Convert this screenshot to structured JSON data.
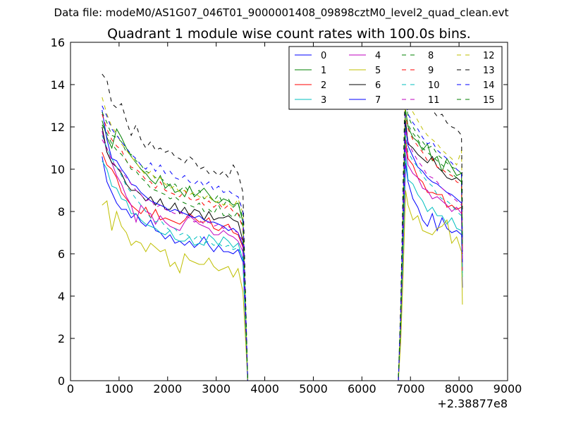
{
  "chart_data": {
    "type": "line",
    "suptitle": "Data file: modeM0/AS1G07_046T01_9000001408_09898cztM0_level2_quad_clean.evt",
    "title": "Quadrant 1 module wise count rates with 100.0s bins.",
    "xlabel": "",
    "ylabel": "",
    "x_offset_label": "+2.38877e8",
    "xlim": [
      0,
      9000
    ],
    "ylim": [
      0,
      16
    ],
    "x_ticks": [
      "0",
      "1000",
      "2000",
      "3000",
      "4000",
      "5000",
      "6000",
      "7000",
      "8000",
      "9000"
    ],
    "y_ticks": [
      "0",
      "2",
      "4",
      "6",
      "8",
      "10",
      "12",
      "14",
      "16"
    ],
    "grid": false,
    "legend_position": "top-right",
    "x": [
      650,
      750,
      850,
      950,
      1050,
      1150,
      1250,
      1350,
      1450,
      1550,
      1650,
      1750,
      1850,
      1950,
      2050,
      2150,
      2250,
      2350,
      2450,
      2550,
      2650,
      2750,
      2850,
      2950,
      3050,
      3150,
      3250,
      3350,
      3450,
      3550,
      3650,
      3700,
      4000,
      5000,
      6000,
      6750,
      6800,
      6850,
      6900,
      6950,
      7050,
      7150,
      7250,
      7350,
      7450,
      7550,
      7650,
      7750,
      7850,
      7950,
      8050,
      8070
    ],
    "series": [
      {
        "name": "0",
        "color": "#0000ff",
        "dash": false,
        "values": [
          10.6,
          9.4,
          8.9,
          8.4,
          8.1,
          8.1,
          7.7,
          7.9,
          7.5,
          7.3,
          7.6,
          7.1,
          7.0,
          6.7,
          6.9,
          6.5,
          6.6,
          6.4,
          6.6,
          6.3,
          6.5,
          6.8,
          6.4,
          6.1,
          6.4,
          6.1,
          6.1,
          6.0,
          6.2,
          5.6,
          0,
          0,
          0,
          0,
          0,
          0,
          2.2,
          6.0,
          10.3,
          9.4,
          8.6,
          8.2,
          7.6,
          7.3,
          7.9,
          7.1,
          7.7,
          7.2,
          7.0,
          7.1,
          6.9,
          4.4
        ]
      },
      {
        "name": "1",
        "color": "#008000",
        "dash": false,
        "values": [
          12.3,
          11.5,
          11.0,
          11.9,
          11.5,
          11.0,
          10.6,
          10.3,
          10.0,
          9.8,
          9.5,
          9.3,
          9.7,
          9.1,
          9.3,
          8.9,
          9.0,
          8.7,
          9.2,
          8.7,
          8.9,
          9.1,
          8.8,
          8.5,
          8.4,
          8.6,
          8.5,
          8.3,
          8.4,
          7.5,
          0,
          0,
          0,
          0,
          0,
          0,
          3.0,
          8.0,
          12.8,
          12.0,
          11.5,
          11.3,
          10.9,
          11.2,
          10.4,
          10.6,
          9.9,
          10.5,
          10.1,
          9.7,
          9.8,
          6.7
        ]
      },
      {
        "name": "2",
        "color": "#ff0000",
        "dash": false,
        "values": [
          10.8,
          10.2,
          10.0,
          9.6,
          8.9,
          8.6,
          8.3,
          8.1,
          7.9,
          8.2,
          7.7,
          8.1,
          7.6,
          7.7,
          7.6,
          7.5,
          7.4,
          7.6,
          7.9,
          7.7,
          7.5,
          7.5,
          7.7,
          7.2,
          7.1,
          7.3,
          7.4,
          7.0,
          6.9,
          6.3,
          0,
          0,
          0,
          0,
          0,
          0,
          2.5,
          7.2,
          11.4,
          10.5,
          10.2,
          9.6,
          9.4,
          8.9,
          8.9,
          8.8,
          8.8,
          8.2,
          8.3,
          8.1,
          8.2,
          5.2
        ]
      },
      {
        "name": "3",
        "color": "#00bfbf",
        "dash": false,
        "values": [
          10.4,
          10.0,
          9.2,
          9.1,
          8.6,
          8.5,
          7.9,
          7.9,
          7.6,
          7.4,
          7.3,
          7.2,
          7.0,
          6.9,
          7.1,
          6.7,
          6.6,
          6.6,
          6.8,
          6.4,
          6.5,
          6.4,
          6.9,
          6.7,
          6.4,
          6.8,
          6.6,
          6.3,
          6.5,
          5.7,
          0,
          0,
          0,
          0,
          0,
          0,
          2.4,
          6.2,
          10.7,
          9.5,
          9.3,
          8.8,
          8.5,
          8.0,
          8.2,
          7.8,
          7.8,
          7.4,
          7.7,
          7.2,
          7.1,
          4.9
        ]
      },
      {
        "name": "4",
        "color": "#bf00bf",
        "dash": false,
        "values": [
          11.8,
          10.8,
          10.3,
          9.7,
          9.3,
          8.7,
          8.3,
          7.5,
          8.3,
          8.0,
          7.9,
          7.4,
          7.8,
          7.5,
          7.3,
          7.2,
          7.1,
          7.5,
          7.8,
          7.6,
          7.4,
          7.3,
          7.2,
          6.9,
          6.9,
          7.1,
          6.9,
          6.8,
          6.6,
          6.1,
          0,
          0,
          0,
          0,
          0,
          0,
          2.6,
          6.8,
          11.1,
          10.2,
          9.8,
          9.6,
          9.1,
          9.0,
          8.6,
          8.7,
          8.5,
          8.3,
          8.0,
          8.2,
          7.9,
          5.2
        ]
      },
      {
        "name": "5",
        "color": "#bfbf00",
        "dash": false,
        "values": [
          8.3,
          8.5,
          7.1,
          8.0,
          7.3,
          7.0,
          6.4,
          6.6,
          6.5,
          6.1,
          6.5,
          6.3,
          6.1,
          6.2,
          5.4,
          5.6,
          5.1,
          6.0,
          5.7,
          5.6,
          5.5,
          5.5,
          5.8,
          5.4,
          5.2,
          5.3,
          5.4,
          4.9,
          5.3,
          4.2,
          0,
          0,
          0,
          0,
          0,
          0,
          1.8,
          5.1,
          9.0,
          8.3,
          7.6,
          7.8,
          7.1,
          7.0,
          6.9,
          7.2,
          7.3,
          7.6,
          6.5,
          6.8,
          6.1,
          3.6
        ]
      },
      {
        "name": "6",
        "color": "#000000",
        "dash": false,
        "values": [
          12.0,
          10.8,
          10.3,
          10.1,
          9.8,
          9.3,
          9.0,
          9.0,
          8.8,
          8.5,
          8.7,
          8.3,
          8.6,
          8.1,
          8.1,
          8.4,
          7.9,
          8.2,
          7.8,
          8.1,
          8.0,
          7.6,
          8.0,
          7.6,
          7.7,
          7.7,
          7.8,
          7.6,
          7.5,
          6.6,
          0,
          0,
          0,
          0,
          0,
          0,
          2.9,
          7.5,
          12.3,
          11.2,
          11.0,
          10.7,
          10.5,
          10.3,
          10.6,
          10.1,
          9.9,
          9.6,
          9.5,
          9.6,
          9.4,
          6.1
        ]
      },
      {
        "name": "7",
        "color": "#0000ff",
        "dash": false,
        "values": [
          12.8,
          11.4,
          10.5,
          10.4,
          10.0,
          9.7,
          9.3,
          9.2,
          8.9,
          8.7,
          8.5,
          8.4,
          8.3,
          8.2,
          8.0,
          8.1,
          8.0,
          7.9,
          7.8,
          7.7,
          7.8,
          7.6,
          7.5,
          7.5,
          7.4,
          7.3,
          7.1,
          7.2,
          7.0,
          6.4,
          0,
          0,
          0,
          0,
          0,
          0,
          2.8,
          7.3,
          12.0,
          11.1,
          10.6,
          10.1,
          9.9,
          9.6,
          9.4,
          9.3,
          9.1,
          8.9,
          8.8,
          8.6,
          8.4,
          5.6
        ]
      },
      {
        "name": "8",
        "color": "#008000",
        "dash": true,
        "values": [
          12.7,
          12.2,
          11.6,
          11.5,
          11.3,
          10.8,
          10.7,
          10.4,
          10.2,
          9.9,
          9.8,
          9.6,
          9.6,
          9.4,
          9.2,
          9.3,
          9.0,
          9.2,
          8.9,
          8.8,
          9.0,
          8.6,
          8.7,
          8.5,
          8.8,
          8.3,
          8.6,
          8.2,
          8.4,
          7.7,
          0,
          0,
          0,
          0,
          0,
          0,
          3.1,
          8.2,
          13.4,
          12.5,
          12.0,
          11.6,
          11.3,
          11.0,
          11.1,
          10.7,
          10.5,
          10.3,
          10.1,
          10.0,
          9.8,
          6.4
        ]
      },
      {
        "name": "9",
        "color": "#ff0000",
        "dash": true,
        "values": [
          12.6,
          11.9,
          11.4,
          11.1,
          10.9,
          10.4,
          10.1,
          10.0,
          9.8,
          9.5,
          9.4,
          9.1,
          9.4,
          9.0,
          8.9,
          8.8,
          8.7,
          9.0,
          8.6,
          8.5,
          8.6,
          8.3,
          8.5,
          8.2,
          8.4,
          8.1,
          8.3,
          8.0,
          7.9,
          7.2,
          0,
          0,
          0,
          0,
          0,
          0,
          3.0,
          7.9,
          12.6,
          11.9,
          11.4,
          11.1,
          10.8,
          10.4,
          10.5,
          10.1,
          10.0,
          9.8,
          9.7,
          9.4,
          9.3,
          6.0
        ]
      },
      {
        "name": "10",
        "color": "#00bfbf",
        "dash": true,
        "values": [
          11.6,
          11.0,
          10.5,
          10.1,
          9.7,
          9.2,
          8.9,
          8.6,
          8.3,
          8.0,
          7.7,
          7.5,
          7.6,
          7.3,
          7.1,
          7.2,
          6.9,
          7.0,
          6.8,
          6.7,
          6.9,
          6.5,
          6.6,
          6.4,
          6.5,
          6.3,
          6.4,
          6.2,
          6.3,
          5.8,
          0,
          0,
          0,
          0,
          0,
          0,
          2.7,
          7.0,
          11.6,
          10.8,
          10.4,
          10.1,
          9.7,
          9.4,
          9.2,
          8.8,
          8.6,
          8.5,
          8.3,
          8.0,
          7.8,
          5.1
        ]
      },
      {
        "name": "11",
        "color": "#bf00bf",
        "dash": true,
        "values": [
          11.4,
          11.0,
          10.4,
          10.1,
          9.9,
          9.6,
          9.3,
          9.0,
          8.8,
          8.5,
          8.6,
          8.2,
          8.3,
          8.1,
          8.0,
          7.9,
          8.0,
          7.8,
          7.7,
          7.5,
          7.6,
          7.4,
          7.5,
          7.3,
          7.4,
          7.2,
          7.3,
          7.1,
          7.0,
          6.6,
          0,
          0,
          0,
          0,
          0,
          0,
          2.8,
          7.4,
          11.9,
          11.3,
          10.8,
          10.4,
          10.1,
          9.7,
          9.6,
          9.4,
          9.1,
          8.9,
          8.7,
          8.5,
          8.3,
          5.6
        ]
      },
      {
        "name": "12",
        "color": "#bfbf00",
        "dash": true,
        "values": [
          13.4,
          12.6,
          12.0,
          11.7,
          11.2,
          10.9,
          10.6,
          10.3,
          10.0,
          9.7,
          9.9,
          9.5,
          9.6,
          9.3,
          9.1,
          9.2,
          8.9,
          9.0,
          8.8,
          8.9,
          8.7,
          8.6,
          8.8,
          8.4,
          8.5,
          8.3,
          8.4,
          8.2,
          8.6,
          7.9,
          0,
          0,
          0,
          0,
          0,
          0,
          3.3,
          8.8,
          13.9,
          13.2,
          12.7,
          12.3,
          11.9,
          11.6,
          11.4,
          11.2,
          10.9,
          10.7,
          10.5,
          10.2,
          10.9,
          7.6
        ]
      },
      {
        "name": "13",
        "color": "#000000",
        "dash": true,
        "values": [
          14.5,
          14.2,
          13.1,
          12.9,
          13.1,
          12.3,
          11.6,
          12.1,
          11.4,
          11.0,
          11.3,
          10.9,
          11.0,
          10.8,
          10.9,
          10.6,
          10.5,
          10.3,
          10.6,
          10.4,
          10.0,
          10.1,
          9.8,
          9.9,
          9.7,
          9.9,
          9.6,
          10.2,
          9.8,
          8.9,
          0,
          0,
          0,
          0,
          0,
          0,
          3.6,
          9.5,
          15.1,
          14.3,
          13.7,
          13.6,
          13.0,
          13.3,
          12.8,
          12.5,
          12.6,
          12.2,
          12.0,
          11.9,
          11.6,
          8.1
        ]
      },
      {
        "name": "14",
        "color": "#0000ff",
        "dash": true,
        "values": [
          13.0,
          12.5,
          11.9,
          11.6,
          11.3,
          11.0,
          10.7,
          10.5,
          10.2,
          10.0,
          10.3,
          9.9,
          10.2,
          9.8,
          9.9,
          9.6,
          9.5,
          9.7,
          9.4,
          9.3,
          9.5,
          9.2,
          9.4,
          9.0,
          9.2,
          8.9,
          9.0,
          8.8,
          8.7,
          8.0,
          0,
          0,
          0,
          0,
          0,
          0,
          3.2,
          8.6,
          13.3,
          12.6,
          12.2,
          11.9,
          11.5,
          11.2,
          11.3,
          10.9,
          10.7,
          10.5,
          10.3,
          10.0,
          9.8,
          6.6
        ]
      },
      {
        "name": "15",
        "color": "#008000",
        "dash": true,
        "values": [
          12.1,
          11.7,
          11.2,
          10.9,
          10.7,
          10.4,
          10.0,
          9.9,
          9.6,
          9.4,
          9.1,
          9.0,
          8.9,
          8.8,
          8.6,
          8.7,
          8.5,
          8.4,
          8.3,
          8.2,
          8.4,
          8.0,
          8.1,
          7.9,
          8.3,
          7.8,
          7.9,
          7.7,
          8.0,
          7.3,
          0,
          0,
          0,
          0,
          0,
          0,
          3.0,
          7.8,
          12.7,
          12.1,
          11.7,
          11.4,
          11.0,
          10.8,
          10.6,
          10.4,
          10.2,
          10.0,
          9.8,
          9.6,
          9.4,
          6.3
        ]
      }
    ]
  }
}
